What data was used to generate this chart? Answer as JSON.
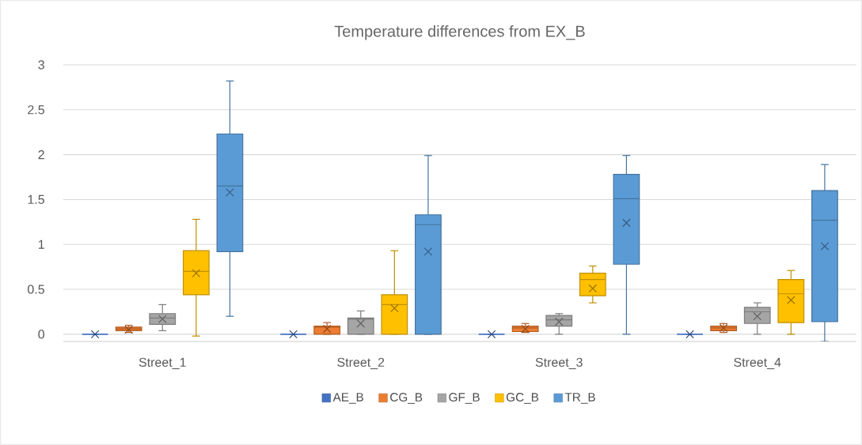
{
  "chart_data": {
    "type": "box",
    "title": "Temperature differences from EX_B",
    "categories": [
      "Street_1",
      "Street_2",
      "Street_3",
      "Street_4"
    ],
    "series": [
      {
        "name": "AE_B",
        "color": "#4472c4",
        "boxes": [
          {
            "low": 0,
            "q1": 0,
            "median": 0,
            "q3": 0,
            "high": 0,
            "mean": 0
          },
          {
            "low": 0,
            "q1": 0,
            "median": 0,
            "q3": 0,
            "high": 0,
            "mean": 0
          },
          {
            "low": 0,
            "q1": 0,
            "median": 0,
            "q3": 0,
            "high": 0,
            "mean": 0
          },
          {
            "low": 0,
            "q1": 0,
            "median": 0,
            "q3": 0,
            "high": 0,
            "mean": 0
          }
        ]
      },
      {
        "name": "CG_B",
        "color": "#ed7d31",
        "boxes": [
          {
            "low": 0.02,
            "q1": 0.04,
            "median": 0.06,
            "q3": 0.08,
            "high": 0.1,
            "mean": 0.05
          },
          {
            "low": 0,
            "q1": 0,
            "median": 0.08,
            "q3": 0.09,
            "high": 0.13,
            "mean": 0.06
          },
          {
            "low": 0.02,
            "q1": 0.03,
            "median": 0.07,
            "q3": 0.09,
            "high": 0.12,
            "mean": 0.06
          },
          {
            "low": 0.02,
            "q1": 0.04,
            "median": 0.07,
            "q3": 0.09,
            "high": 0.12,
            "mean": 0.07
          }
        ]
      },
      {
        "name": "GF_B",
        "color": "#a5a5a5",
        "boxes": [
          {
            "low": 0.04,
            "q1": 0.11,
            "median": 0.18,
            "q3": 0.23,
            "high": 0.33,
            "mean": 0.17
          },
          {
            "low": 0,
            "q1": 0,
            "median": 0.17,
            "q3": 0.18,
            "high": 0.26,
            "mean": 0.12
          },
          {
            "low": 0,
            "q1": 0.09,
            "median": 0.16,
            "q3": 0.21,
            "high": 0.23,
            "mean": 0.14
          },
          {
            "low": 0,
            "q1": 0.12,
            "median": 0.25,
            "q3": 0.3,
            "high": 0.35,
            "mean": 0.2
          }
        ]
      },
      {
        "name": "GC_B",
        "color": "#ffc000",
        "boxes": [
          {
            "low": -0.02,
            "q1": 0.44,
            "median": 0.7,
            "q3": 0.93,
            "high": 1.28,
            "mean": 0.68
          },
          {
            "low": 0,
            "q1": 0,
            "median": 0.33,
            "q3": 0.44,
            "high": 0.93,
            "mean": 0.29
          },
          {
            "low": 0.35,
            "q1": 0.43,
            "median": 0.61,
            "q3": 0.68,
            "high": 0.76,
            "mean": 0.51
          },
          {
            "low": 0,
            "q1": 0.13,
            "median": 0.45,
            "q3": 0.61,
            "high": 0.71,
            "mean": 0.38
          }
        ]
      },
      {
        "name": "TR_B",
        "color": "#5b9bd5",
        "boxes": [
          {
            "low": 0.2,
            "q1": 0.92,
            "median": 1.65,
            "q3": 2.23,
            "high": 2.82,
            "mean": 1.58
          },
          {
            "low": 0,
            "q1": 0,
            "median": 1.22,
            "q3": 1.33,
            "high": 1.99,
            "mean": 0.92
          },
          {
            "low": 0,
            "q1": 0.78,
            "median": 1.51,
            "q3": 1.78,
            "high": 1.99,
            "mean": 1.24
          },
          {
            "low": -0.08,
            "q1": 0.14,
            "median": 1.27,
            "q3": 1.6,
            "high": 1.89,
            "mean": 0.98
          }
        ]
      }
    ],
    "ylim": [
      -0.08,
      3
    ],
    "yticks": [
      0,
      0.5,
      1,
      1.5,
      2,
      2.5,
      3
    ],
    "grid": "y",
    "legend": "bottom"
  }
}
